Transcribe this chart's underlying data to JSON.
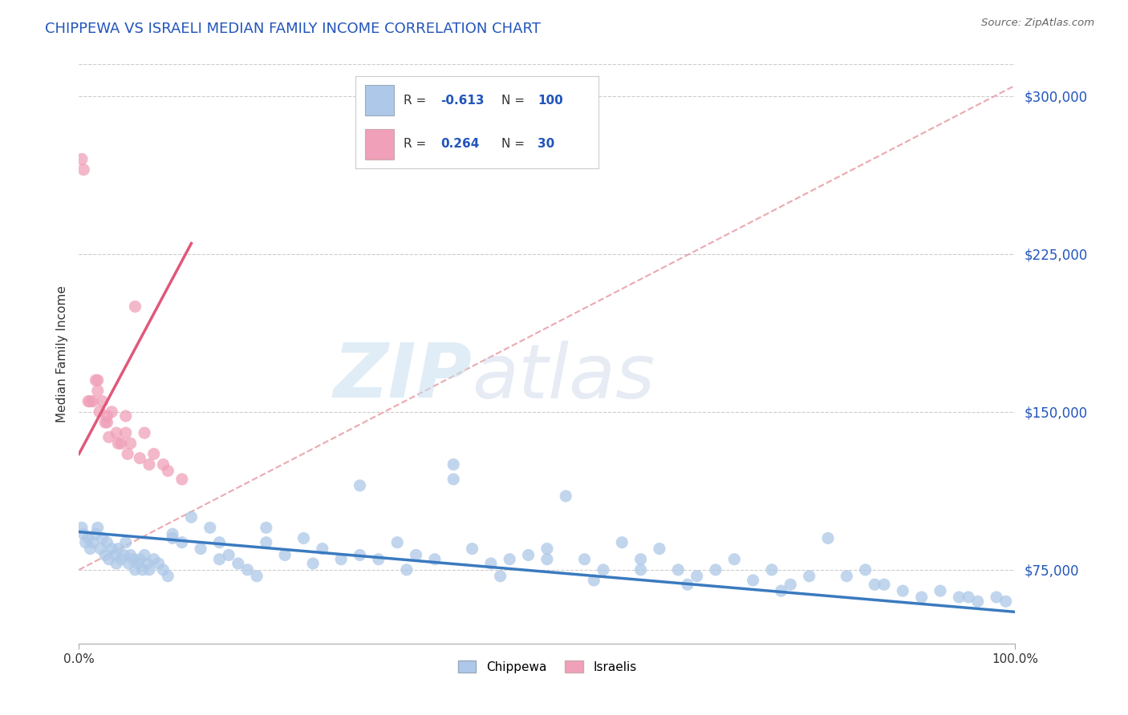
{
  "title": "CHIPPEWA VS ISRAELI MEDIAN FAMILY INCOME CORRELATION CHART",
  "source_text": "Source: ZipAtlas.com",
  "ylabel": "Median Family Income",
  "xlim": [
    0.0,
    100.0
  ],
  "ylim": [
    40000,
    315000
  ],
  "yticks": [
    75000,
    150000,
    225000,
    300000
  ],
  "ytick_labels": [
    "$75,000",
    "$150,000",
    "$225,000",
    "$300,000"
  ],
  "xtick_positions": [
    0.0,
    100.0
  ],
  "xtick_labels": [
    "0.0%",
    "100.0%"
  ],
  "watermark_zip": "ZIP",
  "watermark_atlas": "atlas",
  "chippewa_color": "#adc8e8",
  "israeli_color": "#f0a0b8",
  "blue_line_color": "#3a7abf",
  "pink_line_color": "#e05878",
  "dashed_line_color": "#e8a0a8",
  "grid_color": "#cccccc",
  "background_color": "#ffffff",
  "blue_trend_x": [
    0.0,
    100.0
  ],
  "blue_trend_y": [
    93000,
    55000
  ],
  "pink_trend_x": [
    0.0,
    12.0
  ],
  "pink_trend_y": [
    130000,
    230000
  ],
  "dash_trend_x": [
    0.0,
    100.0
  ],
  "dash_trend_y": [
    75000,
    305000
  ],
  "chippewa_x": [
    0.3,
    0.5,
    0.7,
    1.0,
    1.2,
    1.5,
    1.8,
    2.0,
    2.3,
    2.5,
    2.8,
    3.0,
    3.2,
    3.5,
    3.8,
    4.0,
    4.2,
    4.5,
    4.8,
    5.0,
    5.3,
    5.5,
    5.8,
    6.0,
    6.3,
    6.5,
    6.8,
    7.0,
    7.3,
    7.5,
    8.0,
    8.5,
    9.0,
    9.5,
    10.0,
    11.0,
    12.0,
    13.0,
    14.0,
    15.0,
    16.0,
    17.0,
    18.0,
    19.0,
    20.0,
    22.0,
    24.0,
    26.0,
    28.0,
    30.0,
    32.0,
    34.0,
    36.0,
    38.0,
    40.0,
    42.0,
    44.0,
    46.0,
    48.0,
    50.0,
    52.0,
    54.0,
    56.0,
    58.0,
    60.0,
    62.0,
    64.0,
    66.0,
    68.0,
    70.0,
    72.0,
    74.0,
    76.0,
    78.0,
    80.0,
    82.0,
    84.0,
    86.0,
    88.0,
    90.0,
    92.0,
    94.0,
    96.0,
    98.0,
    99.0,
    20.0,
    30.0,
    40.0,
    50.0,
    60.0,
    10.0,
    15.0,
    25.0,
    35.0,
    45.0,
    55.0,
    65.0,
    75.0,
    85.0,
    95.0
  ],
  "chippewa_y": [
    95000,
    92000,
    88000,
    90000,
    85000,
    88000,
    92000,
    95000,
    85000,
    90000,
    82000,
    88000,
    80000,
    85000,
    82000,
    78000,
    85000,
    80000,
    82000,
    88000,
    78000,
    82000,
    80000,
    75000,
    78000,
    80000,
    75000,
    82000,
    78000,
    75000,
    80000,
    78000,
    75000,
    72000,
    90000,
    88000,
    100000,
    85000,
    95000,
    88000,
    82000,
    78000,
    75000,
    72000,
    88000,
    82000,
    90000,
    85000,
    80000,
    82000,
    80000,
    88000,
    82000,
    80000,
    125000,
    85000,
    78000,
    80000,
    82000,
    85000,
    110000,
    80000,
    75000,
    88000,
    80000,
    85000,
    75000,
    72000,
    75000,
    80000,
    70000,
    75000,
    68000,
    72000,
    90000,
    72000,
    75000,
    68000,
    65000,
    62000,
    65000,
    62000,
    60000,
    62000,
    60000,
    95000,
    115000,
    118000,
    80000,
    75000,
    92000,
    80000,
    78000,
    75000,
    72000,
    70000,
    68000,
    65000,
    68000,
    62000
  ],
  "israeli_x": [
    0.3,
    0.5,
    1.5,
    2.0,
    2.5,
    3.0,
    3.5,
    4.0,
    4.5,
    5.0,
    5.5,
    6.0,
    7.0,
    8.0,
    9.0,
    1.0,
    1.2,
    1.8,
    2.2,
    2.8,
    3.2,
    4.2,
    5.2,
    6.5,
    7.5,
    9.5,
    11.0,
    2.0,
    3.0,
    5.0
  ],
  "israeli_y": [
    270000,
    265000,
    155000,
    165000,
    155000,
    148000,
    150000,
    140000,
    135000,
    148000,
    135000,
    200000,
    140000,
    130000,
    125000,
    155000,
    155000,
    165000,
    150000,
    145000,
    138000,
    135000,
    130000,
    128000,
    125000,
    122000,
    118000,
    160000,
    145000,
    140000
  ],
  "legend_items": [
    {
      "label": "R = -0.613  N = 100",
      "color": "#adc8e8"
    },
    {
      "label": "R =  0.264  N =  30",
      "color": "#f0a0b8"
    }
  ]
}
